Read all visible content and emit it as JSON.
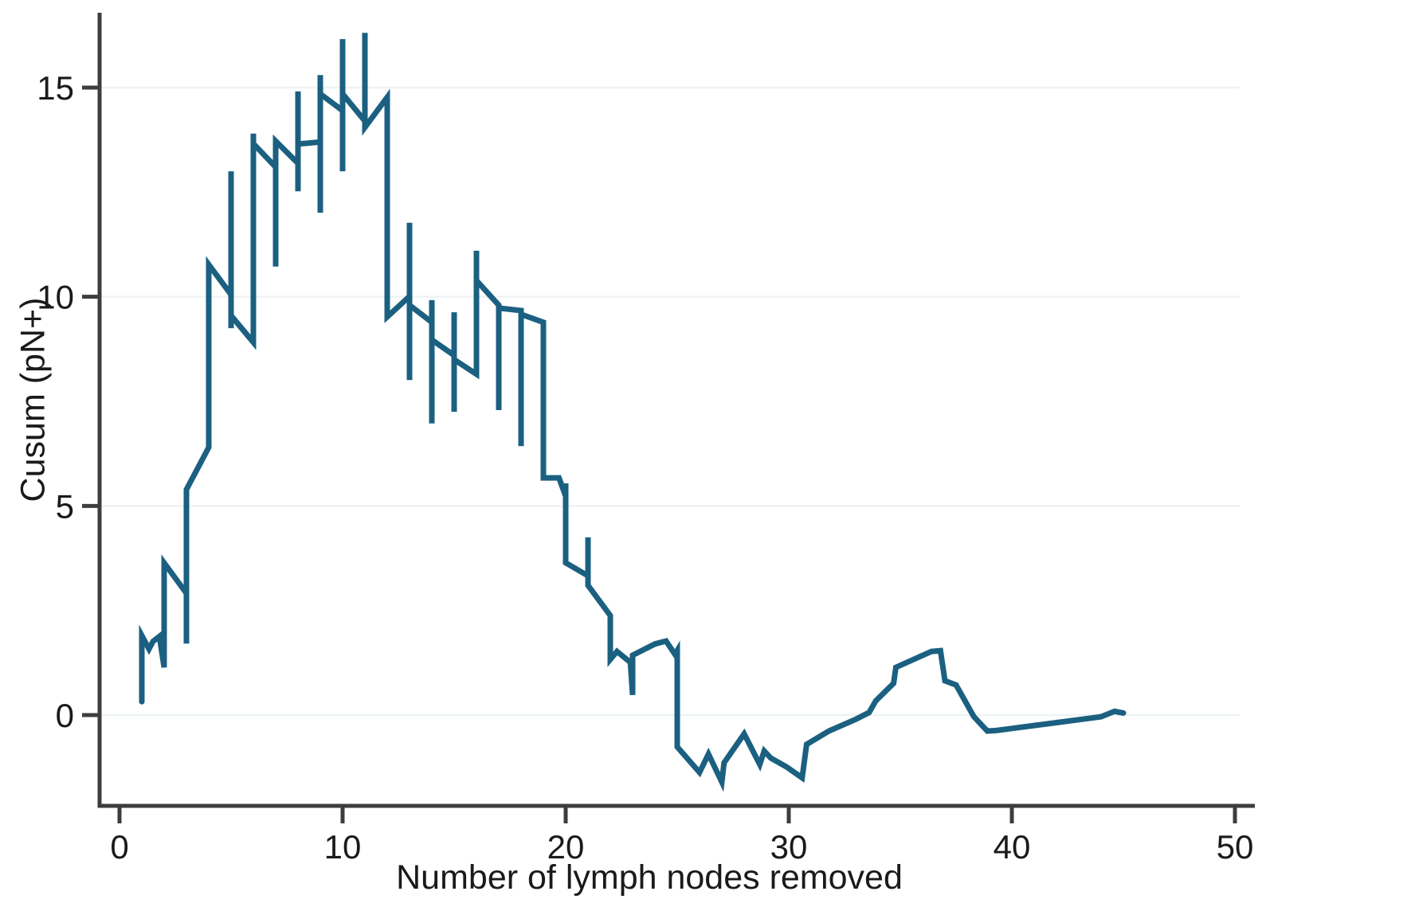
{
  "chart_data": {
    "type": "line",
    "title": "",
    "xlabel": "Number of lymph nodes removed",
    "ylabel": "Cusum (pN+)",
    "x_ticks": [
      0,
      10,
      20,
      30,
      40,
      50
    ],
    "y_ticks": [
      0,
      5,
      10,
      15
    ],
    "xlim": [
      0,
      50
    ],
    "ylim": [
      0,
      15
    ],
    "grid": true,
    "legend_position": "none",
    "line_color": "#1b6080",
    "axis_color": "#3d3d3d",
    "grid_color": "#eef3f6",
    "text_color": "#1a1a1a",
    "series": [
      {
        "name": "Cusum (pN+)",
        "points": [
          [
            1,
            0.32
          ],
          [
            1,
            1.9
          ],
          [
            1.32,
            1.58
          ],
          [
            1.5,
            1.76
          ],
          [
            1.79,
            1.88
          ],
          [
            2,
            1.14
          ],
          [
            2,
            3.64
          ],
          [
            3,
            2.91
          ],
          [
            3,
            1.71
          ],
          [
            3,
            5.39
          ],
          [
            3.85,
            6.25
          ],
          [
            4,
            6.4
          ],
          [
            4,
            10.77
          ],
          [
            5,
            10.05
          ],
          [
            5,
            9.25
          ],
          [
            5,
            13.0
          ],
          [
            5,
            9.55
          ],
          [
            6,
            8.91
          ],
          [
            6,
            13.9
          ],
          [
            6,
            13.66
          ],
          [
            7,
            13.1
          ],
          [
            7,
            10.72
          ],
          [
            7,
            13.72
          ],
          [
            8,
            13.19
          ],
          [
            8,
            12.52
          ],
          [
            8,
            14.91
          ],
          [
            8,
            13.65
          ],
          [
            9,
            13.7
          ],
          [
            9,
            12.01
          ],
          [
            9,
            15.3
          ],
          [
            9,
            14.85
          ],
          [
            10,
            14.45
          ],
          [
            10,
            13.0
          ],
          [
            10,
            16.16
          ],
          [
            10,
            14.85
          ],
          [
            11,
            14.2
          ],
          [
            11,
            16.31
          ],
          [
            11,
            14.05
          ],
          [
            12,
            14.77
          ],
          [
            12,
            9.52
          ],
          [
            13,
            10.01
          ],
          [
            13,
            8.01
          ],
          [
            13,
            11.77
          ],
          [
            13,
            9.8
          ],
          [
            14,
            9.39
          ],
          [
            14,
            6.97
          ],
          [
            14,
            9.92
          ],
          [
            14,
            8.97
          ],
          [
            15,
            8.6
          ],
          [
            15,
            7.25
          ],
          [
            15,
            9.63
          ],
          [
            15,
            8.5
          ],
          [
            16,
            8.15
          ],
          [
            16,
            11.1
          ],
          [
            16,
            10.39
          ],
          [
            17,
            9.8
          ],
          [
            17,
            7.29
          ],
          [
            17,
            9.73
          ],
          [
            18,
            9.67
          ],
          [
            18,
            6.43
          ],
          [
            18,
            9.58
          ],
          [
            19,
            9.39
          ],
          [
            19,
            5.67
          ],
          [
            19.7,
            5.67
          ],
          [
            20,
            5.23
          ],
          [
            20,
            5.54
          ],
          [
            20,
            3.64
          ],
          [
            21,
            3.33
          ],
          [
            21,
            4.25
          ],
          [
            21,
            3.1
          ],
          [
            22,
            2.38
          ],
          [
            22,
            1.33
          ],
          [
            22.3,
            1.52
          ],
          [
            22.9,
            1.26
          ],
          [
            23,
            0.48
          ],
          [
            23,
            1.43
          ],
          [
            24,
            1.7
          ],
          [
            24.5,
            1.77
          ],
          [
            24.9,
            1.45
          ],
          [
            25,
            1.54
          ],
          [
            25,
            -0.76
          ],
          [
            26,
            -1.37
          ],
          [
            26.4,
            -0.93
          ],
          [
            27,
            -1.6
          ],
          [
            27.1,
            -1.14
          ],
          [
            28,
            -0.45
          ],
          [
            28.7,
            -1.18
          ],
          [
            28.9,
            -0.86
          ],
          [
            29.2,
            -1.03
          ],
          [
            29.9,
            -1.24
          ],
          [
            30.6,
            -1.5
          ],
          [
            30.8,
            -0.7
          ],
          [
            31.8,
            -0.38
          ],
          [
            33,
            -0.1
          ],
          [
            33.6,
            0.06
          ],
          [
            33.9,
            0.34
          ],
          [
            34.7,
            0.76
          ],
          [
            34.8,
            1.14
          ],
          [
            35.6,
            1.33
          ],
          [
            36.4,
            1.52
          ],
          [
            36.8,
            1.54
          ],
          [
            37,
            0.82
          ],
          [
            37.5,
            0.72
          ],
          [
            38.3,
            -0.04
          ],
          [
            38.9,
            -0.38
          ],
          [
            39.3,
            -0.37
          ],
          [
            40,
            -0.32
          ],
          [
            41,
            -0.25
          ],
          [
            42,
            -0.18
          ],
          [
            43,
            -0.11
          ],
          [
            44,
            -0.04
          ],
          [
            44.6,
            0.09
          ],
          [
            45,
            0.05
          ]
        ]
      }
    ]
  }
}
